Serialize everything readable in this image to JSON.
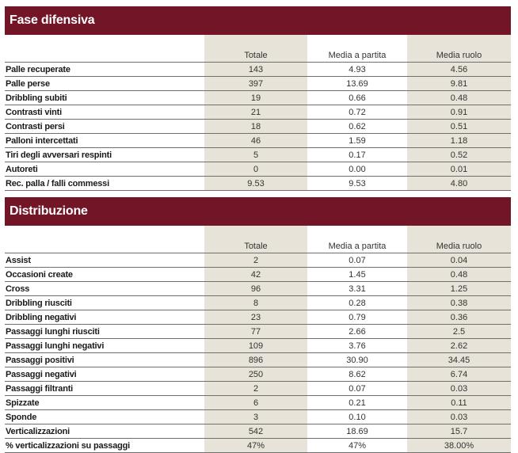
{
  "sections": [
    {
      "title": "Fase difensiva",
      "headers": [
        "Totale",
        "Media a partita",
        "Media ruolo"
      ],
      "rows": [
        {
          "label": "Palle recuperate",
          "values": [
            "143",
            "4.93",
            "4.56"
          ]
        },
        {
          "label": "Palle perse",
          "values": [
            "397",
            "13.69",
            "9.81"
          ]
        },
        {
          "label": "Dribbling subiti",
          "values": [
            "19",
            "0.66",
            "0.48"
          ]
        },
        {
          "label": "Contrasti vinti",
          "values": [
            "21",
            "0.72",
            "0.91"
          ]
        },
        {
          "label": "Contrasti persi",
          "values": [
            "18",
            "0.62",
            "0.51"
          ]
        },
        {
          "label": "Palloni intercettati",
          "values": [
            "46",
            "1.59",
            "1.18"
          ]
        },
        {
          "label": "Tiri degli avversari respinti",
          "values": [
            "5",
            "0.17",
            "0.52"
          ]
        },
        {
          "label": "Autoreti",
          "values": [
            "0",
            "0.00",
            "0.01"
          ]
        },
        {
          "label": "Rec. palla / falli commessi",
          "values": [
            "9.53",
            "9.53",
            "4.80"
          ]
        }
      ]
    },
    {
      "title": "Distribuzione",
      "headers": [
        "Totale",
        "Media a partita",
        "Media ruolo"
      ],
      "rows": [
        {
          "label": "Assist",
          "values": [
            "2",
            "0.07",
            "0.04"
          ]
        },
        {
          "label": "Occasioni create",
          "values": [
            "42",
            "1.45",
            "0.48"
          ]
        },
        {
          "label": "Cross",
          "values": [
            "96",
            "3.31",
            "1.25"
          ]
        },
        {
          "label": "Dribbling riusciti",
          "values": [
            "8",
            "0.28",
            "0.38"
          ]
        },
        {
          "label": "Dribbling negativi",
          "values": [
            "23",
            "0.79",
            "0.36"
          ]
        },
        {
          "label": "Passaggi lunghi riusciti",
          "values": [
            "77",
            "2.66",
            "2.5"
          ]
        },
        {
          "label": "Passaggi lunghi negativi",
          "values": [
            "109",
            "3.76",
            "2.62"
          ]
        },
        {
          "label": "Passaggi positivi",
          "values": [
            "896",
            "30.90",
            "34.45"
          ]
        },
        {
          "label": "Passaggi negativi",
          "values": [
            "250",
            "8.62",
            "6.74"
          ]
        },
        {
          "label": "Passaggi filtranti",
          "values": [
            "2",
            "0.07",
            "0.03"
          ]
        },
        {
          "label": "Spizzate",
          "values": [
            "6",
            "0.21",
            "0.11"
          ]
        },
        {
          "label": "Sponde",
          "values": [
            "3",
            "0.10",
            "0.03"
          ]
        },
        {
          "label": "Verticalizzazioni",
          "values": [
            "542",
            "18.69",
            "15.7"
          ]
        },
        {
          "label": "% verticalizzazioni su passaggi",
          "values": [
            "47%",
            "47%",
            "38.00%"
          ]
        }
      ]
    }
  ],
  "colors": {
    "banner": "#721627",
    "shade": "#e7e3d8"
  }
}
